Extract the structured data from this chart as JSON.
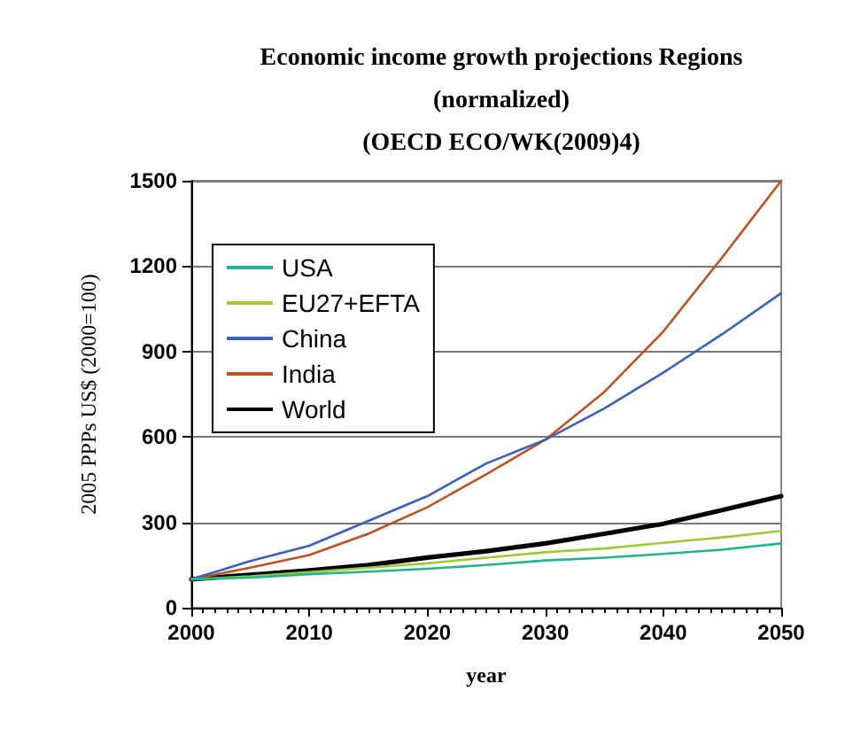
{
  "chart_data": {
    "type": "line",
    "title": "Economic income growth projections Regions\n(normalized)\n(OECD ECO/WK(2009)4)",
    "xlabel": "year",
    "ylabel": "2005 PPPs US$ (2000=100)",
    "x": [
      2000,
      2005,
      2010,
      2015,
      2020,
      2025,
      2030,
      2035,
      2040,
      2045,
      2050
    ],
    "series": [
      {
        "name": "USA",
        "color": "#1fb58f",
        "values": [
          100,
          106,
          118,
          127,
          137,
          150,
          166,
          176,
          189,
          204,
          226
        ]
      },
      {
        "name": "EU27+EFTA",
        "color": "#9acd32",
        "values": [
          100,
          110,
          125,
          141,
          156,
          176,
          195,
          208,
          228,
          247,
          270
        ]
      },
      {
        "name": "China",
        "color": "#3a5fbf",
        "values": [
          100,
          164,
          218,
          305,
          392,
          507,
          590,
          700,
          826,
          961,
          1105
        ]
      },
      {
        "name": "India",
        "color": "#c0501f",
        "values": [
          100,
          141,
          185,
          260,
          353,
          469,
          590,
          758,
          970,
          1231,
          1500
        ]
      },
      {
        "name": "World",
        "color": "#000000",
        "values": [
          100,
          116,
          131,
          150,
          176,
          199,
          226,
          260,
          295,
          343,
          392
        ]
      }
    ],
    "xlim": [
      2000,
      2050
    ],
    "xticks": [
      2000,
      2010,
      2020,
      2030,
      2040,
      2050
    ],
    "ylim": [
      0,
      1500
    ],
    "yticks": [
      0,
      300,
      600,
      900,
      1200,
      1500
    ],
    "grid": "y",
    "legend": "top left",
    "marker": "none",
    "line_style": "solid"
  }
}
